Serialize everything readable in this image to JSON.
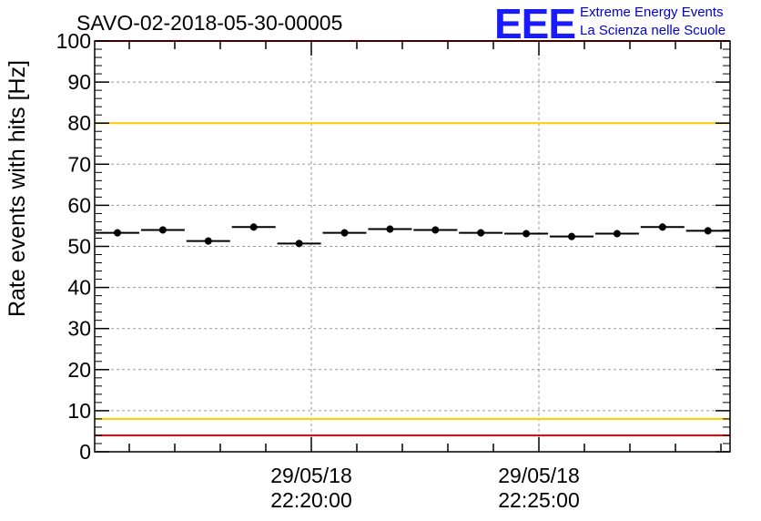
{
  "chart_data": {
    "type": "scatter",
    "title": "SAVO-02-2018-05-30-00005",
    "ylabel": "Rate events with hits [Hz]",
    "xlabel": "",
    "ylim": [
      0,
      100
    ],
    "y_ticks": [
      "0",
      "10",
      "20",
      "30",
      "40",
      "50",
      "60",
      "70",
      "80",
      "90",
      "100"
    ],
    "x_ticks": [
      {
        "date": "29/05/18",
        "time": "22:20:00"
      },
      {
        "date": "29/05/18",
        "time": "22:25:00"
      }
    ],
    "grid": true,
    "series": [
      {
        "name": "rate",
        "values": [
          53.3,
          54.0,
          51.3,
          54.7,
          50.7,
          53.3,
          54.2,
          54.0,
          53.3,
          53.1,
          52.4,
          53.1,
          54.7,
          53.8
        ]
      }
    ],
    "reference_lines": [
      {
        "value": 100,
        "color": "#ff0000"
      },
      {
        "value": 80,
        "color": "#ffcc00"
      },
      {
        "value": 8,
        "color": "#ffcc00"
      },
      {
        "value": 4,
        "color": "#ff0000"
      }
    ]
  },
  "logo": {
    "mark": "EEE",
    "line1": "Extreme Energy Events",
    "line2": "La Scienza nelle Scuole",
    "color": "#1a1aff"
  }
}
